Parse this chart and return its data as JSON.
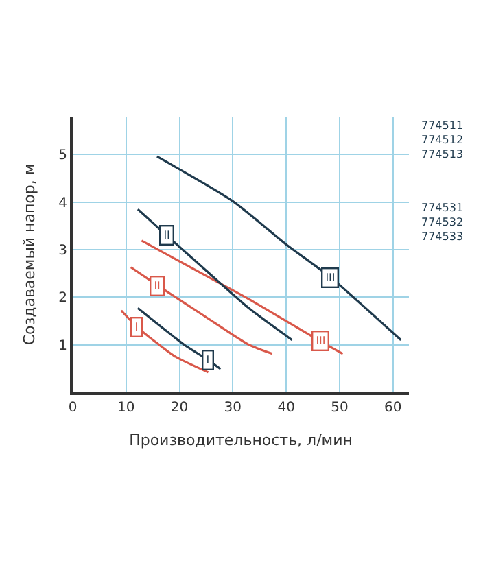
{
  "chart_data": {
    "type": "line",
    "xlabel": "Производительность, л/мин",
    "ylabel": "Создаваемый напор, м",
    "series": [
      {
        "color": "#d9584a",
        "x": [
          9.1,
          12.0,
          19.1,
          25.4
        ],
        "values": [
          1.72,
          1.38,
          0.76,
          0.42
        ]
      },
      {
        "color": "#d9584a",
        "x": [
          10.9,
          15.9,
          25,
          33,
          37.4
        ],
        "values": [
          2.63,
          2.25,
          1.58,
          1.0,
          0.81
        ]
      },
      {
        "color": "#d9584a",
        "x": [
          12.9,
          25,
          33,
          46.3,
          50.6
        ],
        "values": [
          3.19,
          2.45,
          1.96,
          1.08,
          0.81
        ]
      },
      {
        "color": "#1f3a4d",
        "x": [
          12.2,
          20.9,
          25.2,
          27.7
        ],
        "values": [
          1.77,
          1.0,
          0.69,
          0.49
        ]
      },
      {
        "color": "#1f3a4d",
        "x": [
          12.2,
          17.6,
          25,
          33,
          41.1
        ],
        "values": [
          3.85,
          3.3,
          2.56,
          1.77,
          1.1
        ]
      },
      {
        "color": "#1f3a4d",
        "x": [
          15.8,
          30,
          40,
          48.3,
          61.5
        ],
        "values": [
          4.96,
          4.02,
          3.11,
          2.42,
          1.1
        ]
      }
    ],
    "annotations": [
      {
        "text": "I",
        "x": 12.0,
        "y": 1.38
      },
      {
        "text": "II",
        "x": 15.9,
        "y": 2.25
      },
      {
        "text": "III",
        "x": 46.3,
        "y": 1.08
      },
      {
        "text": "I",
        "x": 25.2,
        "y": 0.69
      },
      {
        "text": "II",
        "x": 17.6,
        "y": 3.3
      },
      {
        "text": "III",
        "x": 48.3,
        "y": 2.42
      },
      "774511\n774512\n774513",
      "774531\n774532\n774533"
    ],
    "xlim": [
      0,
      63
    ],
    "ylim": [
      0,
      5.8
    ],
    "xticks": [
      0,
      10,
      20,
      30,
      40,
      50,
      60
    ],
    "yticks": [
      1,
      2,
      3,
      4,
      5
    ],
    "grid": true,
    "marker": "none",
    "line_style": "solid"
  }
}
